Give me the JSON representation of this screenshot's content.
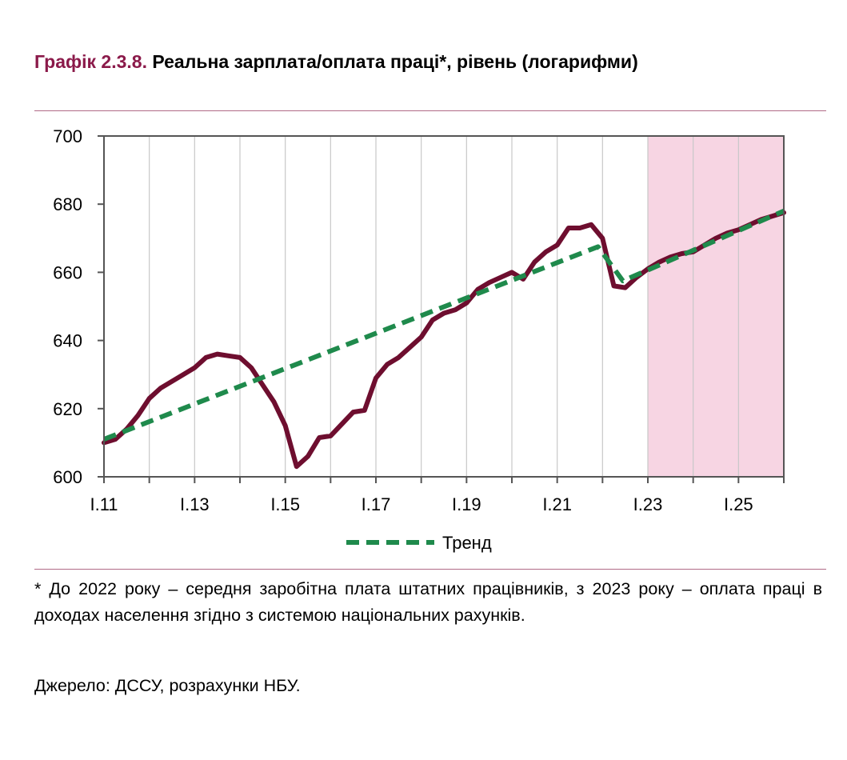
{
  "title": {
    "number": "Графік 2.3.8.",
    "text": "Реальна зарплата/оплата праці*, рівень (логарифми)"
  },
  "footnote": "* До 2022 року – середня заробітна плата штатних працівників, з 2023 року – оплата праці в доходах населення згідно з системою національних рахунків.",
  "source": "Джерело: ДССУ, розрахунки НБУ.",
  "colors": {
    "actual_line": "#6e0e2f",
    "trend_line": "#1f8a4c",
    "forecast_shade": "#f7d5e3",
    "grid": "#c8c8c8",
    "axis": "#555555"
  },
  "chart_data": {
    "type": "line",
    "title": "",
    "xlabel": "",
    "ylabel": "",
    "x_domain": [
      2011.0,
      2026.0
    ],
    "ylim": [
      600,
      700
    ],
    "yticks": [
      600,
      620,
      640,
      660,
      680,
      700
    ],
    "xticks": [
      {
        "value": 2011,
        "label": "I.11"
      },
      {
        "value": 2013,
        "label": "I.13"
      },
      {
        "value": 2015,
        "label": "I.15"
      },
      {
        "value": 2017,
        "label": "I.17"
      },
      {
        "value": 2019,
        "label": "I.19"
      },
      {
        "value": 2021,
        "label": "I.21"
      },
      {
        "value": 2023,
        "label": "I.23"
      },
      {
        "value": 2025,
        "label": "I.25"
      }
    ],
    "grid": "vertical-yearly",
    "forecast_region": [
      2023.0,
      2026.0
    ],
    "legend": {
      "position": "bottom-center",
      "entries": [
        "Тренд"
      ]
    },
    "series": [
      {
        "key": "actual",
        "style": "solid",
        "x": [
          2011.0,
          2011.25,
          2011.5,
          2011.75,
          2012.0,
          2012.25,
          2012.5,
          2012.75,
          2013.0,
          2013.25,
          2013.5,
          2013.75,
          2014.0,
          2014.25,
          2014.5,
          2014.75,
          2015.0,
          2015.25,
          2015.5,
          2015.75,
          2016.0,
          2016.25,
          2016.5,
          2016.75,
          2017.0,
          2017.25,
          2017.5,
          2017.75,
          2018.0,
          2018.25,
          2018.5,
          2018.75,
          2019.0,
          2019.25,
          2019.5,
          2019.75,
          2020.0,
          2020.25,
          2020.5,
          2020.75,
          2021.0,
          2021.25,
          2021.5,
          2021.75,
          2022.0,
          2022.25,
          2022.5,
          2022.75,
          2023.0,
          2023.25,
          2023.5,
          2023.75,
          2024.0,
          2024.25,
          2024.5,
          2024.75,
          2025.0,
          2025.25,
          2025.5,
          2025.75,
          2026.0
        ],
        "y": [
          610.0,
          611.0,
          614.0,
          618.0,
          623.0,
          626.0,
          628.0,
          630.0,
          632.0,
          635.0,
          636.0,
          635.5,
          635.0,
          632.0,
          627.0,
          622.0,
          615.0,
          603.0,
          606.0,
          611.5,
          612.0,
          615.5,
          619.0,
          619.5,
          629.0,
          633.0,
          635.0,
          638.0,
          641.0,
          646.0,
          648.0,
          649.0,
          651.0,
          655.0,
          657.0,
          658.5,
          660.0,
          658.0,
          663.0,
          666.0,
          668.0,
          673.0,
          673.0,
          674.0,
          670.0,
          656.0,
          655.5,
          658.5,
          661.0,
          663.0,
          664.5,
          665.5,
          666.0,
          668.0,
          670.0,
          671.5,
          672.5,
          674.0,
          675.5,
          676.5,
          677.5
        ]
      },
      {
        "key": "trend",
        "name": "Тренд",
        "style": "dashed",
        "x": [
          2011.0,
          2021.9,
          2022.45,
          2026.0
        ],
        "y": [
          611.0,
          667.5,
          657.5,
          678.0
        ]
      }
    ]
  }
}
